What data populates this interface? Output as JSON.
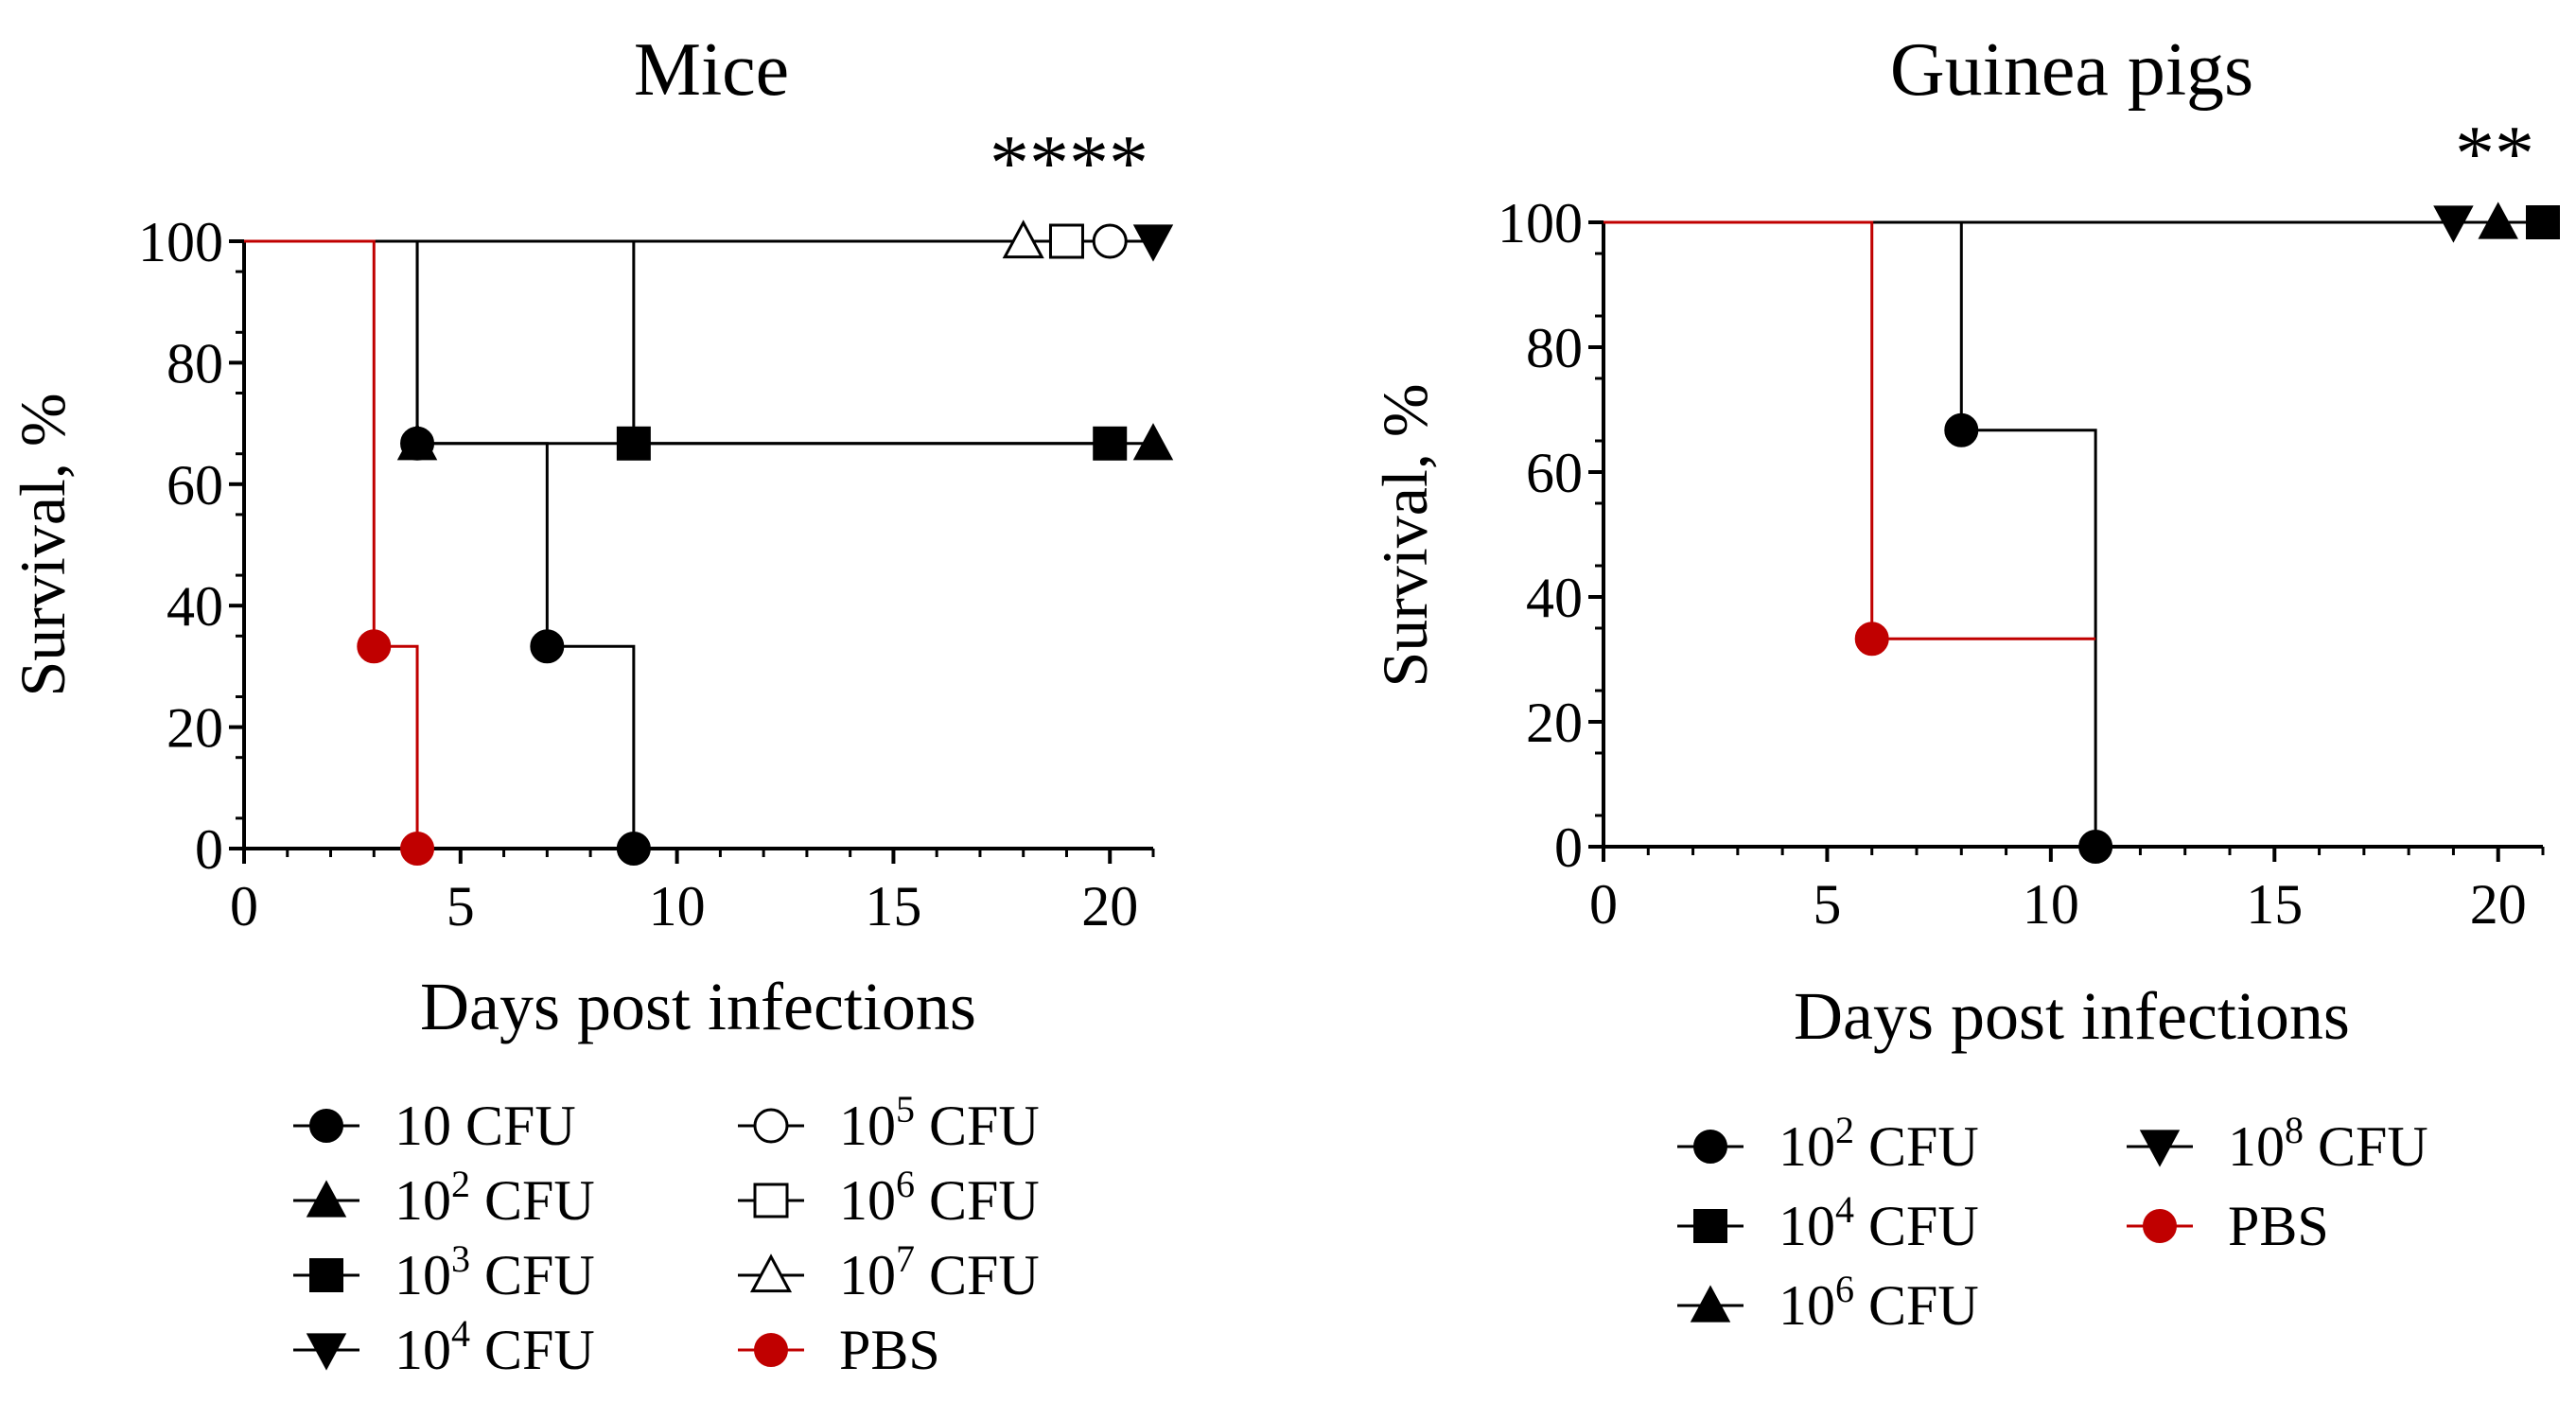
{
  "colors": {
    "ink": "#000000",
    "pbs": "#c00000"
  },
  "chart_data": [
    {
      "type": "line",
      "subtype": "kaplan-meier survival",
      "title": "Mice",
      "xlabel": "Days post infections",
      "ylabel": "Survival, %",
      "xlim": [
        0,
        21
      ],
      "ylim": [
        0,
        100
      ],
      "xticks": [
        "0",
        "5",
        "10",
        "15",
        "20"
      ],
      "yticks": [
        "0",
        "20",
        "40",
        "60",
        "80",
        "100"
      ],
      "significance": "****",
      "legend_columns": 2,
      "series": [
        {
          "name": "10 CFU",
          "base": "10",
          "exp": "",
          "unit": " CFU",
          "marker": "circle",
          "filled": true,
          "color": "ink",
          "steps": [
            [
              0,
              100
            ],
            [
              4,
              100
            ],
            [
              4,
              66.7
            ],
            [
              7,
              66.7
            ],
            [
              7,
              33.3
            ],
            [
              9,
              33.3
            ],
            [
              9,
              0
            ]
          ],
          "markers": [
            [
              4,
              66.7
            ],
            [
              7,
              33.3
            ],
            [
              9,
              0
            ]
          ]
        },
        {
          "name": "10^2 CFU",
          "base": "10",
          "exp": "2",
          "unit": " CFU",
          "marker": "triangle-up",
          "filled": true,
          "color": "ink",
          "steps": [
            [
              0,
              100
            ],
            [
              4,
              100
            ],
            [
              4,
              66.7
            ],
            [
              21,
              66.7
            ]
          ],
          "markers": [
            [
              4,
              66.7
            ],
            [
              21,
              66.7
            ]
          ]
        },
        {
          "name": "10^3 CFU",
          "base": "10",
          "exp": "3",
          "unit": " CFU",
          "marker": "square",
          "filled": true,
          "color": "ink",
          "steps": [
            [
              0,
              100
            ],
            [
              9,
              100
            ],
            [
              9,
              66.7
            ],
            [
              20,
              66.7
            ]
          ],
          "markers": [
            [
              9,
              66.7
            ],
            [
              20,
              66.7
            ]
          ]
        },
        {
          "name": "10^4 CFU",
          "base": "10",
          "exp": "4",
          "unit": " CFU",
          "marker": "triangle-down",
          "filled": true,
          "color": "ink",
          "steps": [
            [
              0,
              100
            ],
            [
              21,
              100
            ]
          ],
          "markers": [
            [
              21,
              100
            ]
          ]
        },
        {
          "name": "10^5 CFU",
          "base": "10",
          "exp": "5",
          "unit": " CFU",
          "marker": "circle",
          "filled": false,
          "color": "ink",
          "steps": [
            [
              0,
              100
            ],
            [
              20,
              100
            ]
          ],
          "markers": [
            [
              20,
              100
            ]
          ]
        },
        {
          "name": "10^6 CFU",
          "base": "10",
          "exp": "6",
          "unit": " CFU",
          "marker": "square",
          "filled": false,
          "color": "ink",
          "steps": [
            [
              0,
              100
            ],
            [
              19,
              100
            ]
          ],
          "markers": [
            [
              19,
              100
            ]
          ]
        },
        {
          "name": "10^7 CFU",
          "base": "10",
          "exp": "7",
          "unit": " CFU",
          "marker": "triangle-up",
          "filled": false,
          "color": "ink",
          "steps": [
            [
              0,
              100
            ],
            [
              18,
              100
            ]
          ],
          "markers": [
            [
              18,
              100
            ]
          ]
        },
        {
          "name": "PBS",
          "base": "PBS",
          "exp": "",
          "unit": "",
          "marker": "circle",
          "filled": true,
          "color": "pbs",
          "steps": [
            [
              0,
              100
            ],
            [
              3,
              100
            ],
            [
              3,
              33.3
            ],
            [
              4,
              33.3
            ],
            [
              4,
              0
            ]
          ],
          "markers": [
            [
              3,
              33.3
            ],
            [
              4,
              0
            ]
          ]
        }
      ]
    },
    {
      "type": "line",
      "subtype": "kaplan-meier survival",
      "title": "Guinea pigs",
      "xlabel": "Days post infections",
      "ylabel": "Survival, %",
      "xlim": [
        0,
        21
      ],
      "ylim": [
        0,
        100
      ],
      "xticks": [
        "0",
        "5",
        "10",
        "15",
        "20"
      ],
      "yticks": [
        "0",
        "20",
        "40",
        "60",
        "80",
        "100"
      ],
      "significance": "**",
      "legend_columns": 2,
      "series": [
        {
          "name": "10^2 CFU",
          "base": "10",
          "exp": "2",
          "unit": " CFU",
          "marker": "circle",
          "filled": true,
          "color": "ink",
          "steps": [
            [
              0,
              100
            ],
            [
              8,
              100
            ],
            [
              8,
              66.7
            ],
            [
              11,
              66.7
            ],
            [
              11,
              0
            ]
          ],
          "markers": [
            [
              8,
              66.7
            ],
            [
              11,
              0
            ]
          ]
        },
        {
          "name": "10^4 CFU",
          "base": "10",
          "exp": "4",
          "unit": " CFU",
          "marker": "square",
          "filled": true,
          "color": "ink",
          "steps": [
            [
              0,
              100
            ],
            [
              21,
              100
            ]
          ],
          "markers": [
            [
              21,
              100
            ]
          ]
        },
        {
          "name": "10^6 CFU",
          "base": "10",
          "exp": "6",
          "unit": " CFU",
          "marker": "triangle-up",
          "filled": true,
          "color": "ink",
          "steps": [
            [
              0,
              100
            ],
            [
              20,
              100
            ]
          ],
          "markers": [
            [
              20,
              100
            ]
          ]
        },
        {
          "name": "10^8 CFU",
          "base": "10",
          "exp": "8",
          "unit": " CFU",
          "marker": "triangle-down",
          "filled": true,
          "color": "ink",
          "steps": [
            [
              0,
              100
            ],
            [
              19,
              100
            ]
          ],
          "markers": [
            [
              19,
              100
            ]
          ]
        },
        {
          "name": "PBS",
          "base": "PBS",
          "exp": "",
          "unit": "",
          "marker": "circle",
          "filled": true,
          "color": "pbs",
          "steps": [
            [
              0,
              100
            ],
            [
              6,
              100
            ],
            [
              6,
              33.3
            ],
            [
              11,
              33.3
            ]
          ],
          "markers": [
            [
              6,
              33.3
            ]
          ]
        }
      ]
    }
  ]
}
